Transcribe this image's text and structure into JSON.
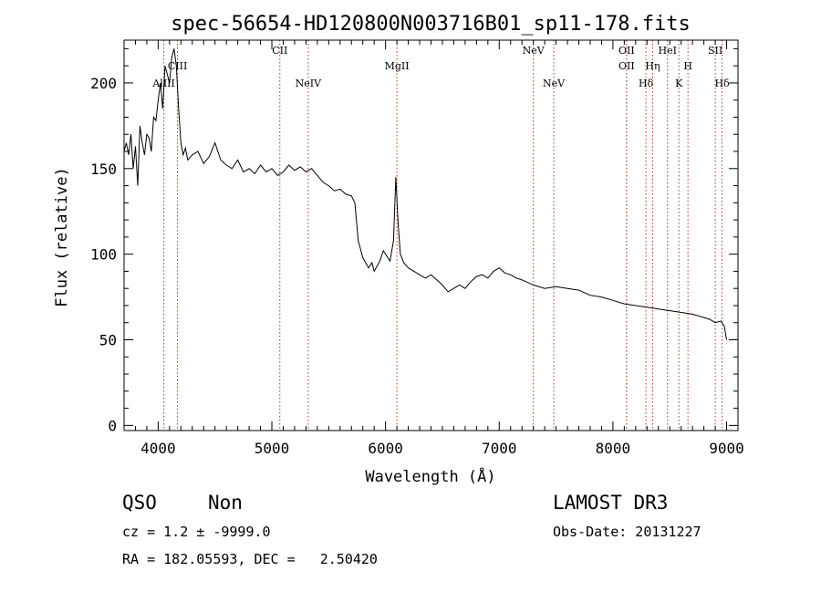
{
  "chart_data": {
    "type": "line",
    "title": "spec-56654-HD120800N003716B01_sp11-178.fits",
    "xlabel": "Wavelength (Å)",
    "ylabel": "Flux (relative)",
    "xlim": [
      3700,
      9100
    ],
    "ylim": [
      -3,
      225
    ],
    "x_ticks": [
      4000,
      5000,
      6000,
      7000,
      8000,
      9000
    ],
    "y_ticks": [
      0,
      50,
      100,
      150,
      200
    ],
    "grid": false,
    "spectral_lines": [
      {
        "name": "AlIII",
        "x": 4050,
        "row": 2
      },
      {
        "name": "CIII",
        "x": 4170,
        "row": 1
      },
      {
        "name": "CII",
        "x": 5070,
        "row": 0
      },
      {
        "name": "NeIV",
        "x": 5320,
        "row": 2
      },
      {
        "name": "MgII",
        "x": 6100,
        "row": 1
      },
      {
        "name": "NeV",
        "x": 7300,
        "row": 0
      },
      {
        "name": "NeV",
        "x": 7480,
        "row": 2
      },
      {
        "name": "OII",
        "x": 8120,
        "row": 0
      },
      {
        "name": "OII",
        "x": 8120,
        "row": 1
      },
      {
        "name": "Hδ",
        "x": 8290,
        "row": 2
      },
      {
        "name": "Hη",
        "x": 8350,
        "row": 1
      },
      {
        "name": "HeI",
        "x": 8480,
        "row": 0
      },
      {
        "name": "K",
        "x": 8580,
        "row": 2
      },
      {
        "name": "H",
        "x": 8660,
        "row": 1
      },
      {
        "name": "SII",
        "x": 8900,
        "row": 0
      },
      {
        "name": "Hδ",
        "x": 8960,
        "row": 2
      }
    ],
    "series": [
      {
        "x": [
          3700,
          3720,
          3740,
          3760,
          3780,
          3800,
          3820,
          3840,
          3860,
          3880,
          3900,
          3920,
          3940,
          3960,
          3980,
          4000,
          4020,
          4040,
          4060,
          4080,
          4100,
          4120,
          4140,
          4160,
          4180,
          4200,
          4220,
          4240,
          4260,
          4300,
          4350,
          4400,
          4450,
          4500,
          4550,
          4600,
          4650,
          4700,
          4750,
          4800,
          4850,
          4900,
          4950,
          5000,
          5050,
          5100,
          5150,
          5200,
          5250,
          5300,
          5350,
          5400,
          5450,
          5500,
          5550,
          5600,
          5650,
          5700,
          5730,
          5750,
          5760,
          5780,
          5800,
          5850,
          5880,
          5900,
          5950,
          5980,
          6000,
          6040,
          6070,
          6090,
          6110,
          6130,
          6160,
          6200,
          6250,
          6300,
          6350,
          6400,
          6450,
          6500,
          6550,
          6600,
          6650,
          6700,
          6750,
          6800,
          6850,
          6900,
          6950,
          7000,
          7050,
          7100,
          7150,
          7200,
          7300,
          7400,
          7500,
          7600,
          7700,
          7800,
          7900,
          8000,
          8100,
          8200,
          8300,
          8400,
          8500,
          8600,
          8700,
          8800,
          8850,
          8900,
          8950,
          8980,
          9000
        ],
        "y": [
          160,
          165,
          158,
          170,
          150,
          163,
          140,
          175,
          165,
          158,
          170,
          168,
          160,
          180,
          178,
          190,
          200,
          185,
          210,
          205,
          200,
          215,
          220,
          210,
          185,
          165,
          158,
          162,
          155,
          158,
          160,
          153,
          157,
          165,
          155,
          152,
          150,
          155,
          148,
          150,
          147,
          152,
          148,
          150,
          146,
          148,
          152,
          149,
          151,
          148,
          150,
          146,
          142,
          140,
          137,
          138,
          135,
          134,
          130,
          115,
          108,
          103,
          98,
          92,
          95,
          90,
          96,
          102,
          100,
          96,
          108,
          145,
          118,
          100,
          95,
          92,
          90,
          88,
          86,
          88,
          85,
          82,
          78,
          80,
          82,
          80,
          84,
          87,
          88,
          86,
          90,
          92,
          89,
          88,
          86,
          85,
          82,
          80,
          81,
          80,
          79,
          76,
          75,
          73,
          71,
          70,
          69,
          68,
          67,
          66,
          65,
          63,
          62,
          60,
          61,
          58,
          50
        ]
      }
    ]
  },
  "info": {
    "object_class": "QSO",
    "subclass": "Non",
    "survey": "LAMOST DR3",
    "redshift": "cz = 1.2 ± -9999.0",
    "obs_date": "Obs-Date: 20131227",
    "coordinates": "RA = 182.05593, DEC =   2.50420"
  },
  "colors": {
    "line": "#000000",
    "marker": "#b03a1e"
  }
}
